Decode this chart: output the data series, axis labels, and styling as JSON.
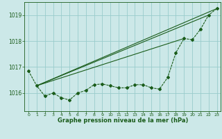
{
  "title": "Graphe pression niveau de la mer (hPa)",
  "bg_color": "#cce8e8",
  "grid_color": "#99cccc",
  "line_color": "#1a5c1a",
  "xlim": [
    -0.5,
    23.5
  ],
  "ylim": [
    1015.3,
    1019.5
  ],
  "yticks": [
    1016,
    1017,
    1018,
    1019
  ],
  "xticks": [
    0,
    1,
    2,
    3,
    4,
    5,
    6,
    7,
    8,
    9,
    10,
    11,
    12,
    13,
    14,
    15,
    16,
    17,
    18,
    19,
    20,
    21,
    22,
    23
  ],
  "main_series": [
    [
      0,
      1016.85
    ],
    [
      1,
      1016.28
    ],
    [
      2,
      1015.88
    ],
    [
      3,
      1016.0
    ],
    [
      4,
      1015.82
    ],
    [
      5,
      1015.73
    ],
    [
      6,
      1016.0
    ],
    [
      7,
      1016.1
    ],
    [
      8,
      1016.32
    ],
    [
      9,
      1016.35
    ],
    [
      10,
      1016.28
    ],
    [
      11,
      1016.2
    ],
    [
      12,
      1016.2
    ],
    [
      13,
      1016.32
    ],
    [
      14,
      1016.32
    ],
    [
      15,
      1016.2
    ],
    [
      16,
      1016.15
    ],
    [
      17,
      1016.6
    ],
    [
      18,
      1017.55
    ],
    [
      19,
      1018.1
    ],
    [
      20,
      1018.05
    ],
    [
      21,
      1018.45
    ],
    [
      22,
      1019.0
    ],
    [
      23,
      1019.25
    ]
  ],
  "straight_lines": [
    [
      [
        1,
        1016.28
      ],
      [
        23,
        1019.25
      ]
    ],
    [
      [
        1,
        1016.28
      ],
      [
        22,
        1019.0
      ]
    ],
    [
      [
        1,
        1016.28
      ],
      [
        19,
        1018.1
      ]
    ]
  ]
}
